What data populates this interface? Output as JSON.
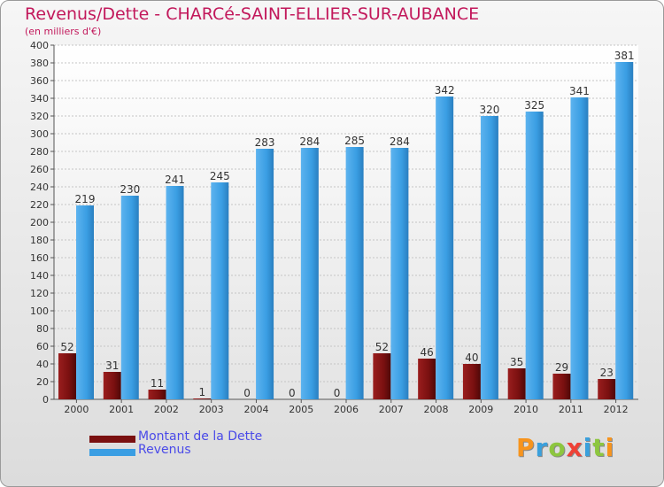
{
  "title": "Revenus/Dette - CHARCé-SAINT-ELLIER-SUR-AUBANCE",
  "subtitle": "(en milliers d'€)",
  "legend": {
    "dette_label": "Montant de la Dette",
    "revenus_label": "Revenus"
  },
  "watermark": {
    "letters": [
      "P",
      "r",
      "o",
      "x",
      "i",
      "t",
      "i"
    ],
    "colors": [
      "#f7941d",
      "#3aa0dc",
      "#8dc63f",
      "#ef4136",
      "#3aa0dc",
      "#8dc63f",
      "#f7941d"
    ]
  },
  "colors": {
    "dette": "#7a1010",
    "revenus": "#3a9ee3"
  },
  "chart_data": {
    "type": "bar",
    "categories": [
      "2000",
      "2001",
      "2002",
      "2003",
      "2004",
      "2005",
      "2006",
      "2007",
      "2008",
      "2009",
      "2010",
      "2011",
      "2012"
    ],
    "series": [
      {
        "name": "Montant de la Dette",
        "values": [
          52,
          31,
          11,
          1,
          0,
          0,
          0,
          52,
          46,
          40,
          35,
          29,
          23
        ]
      },
      {
        "name": "Revenus",
        "values": [
          219,
          230,
          241,
          245,
          283,
          284,
          285,
          284,
          342,
          320,
          325,
          341,
          381
        ]
      }
    ],
    "ylim": [
      0,
      400
    ],
    "yticks": [
      0,
      20,
      40,
      60,
      80,
      100,
      120,
      140,
      160,
      180,
      200,
      220,
      240,
      260,
      280,
      300,
      320,
      340,
      360,
      380,
      400
    ],
    "grid": true,
    "legend_position": "bottom-left"
  }
}
